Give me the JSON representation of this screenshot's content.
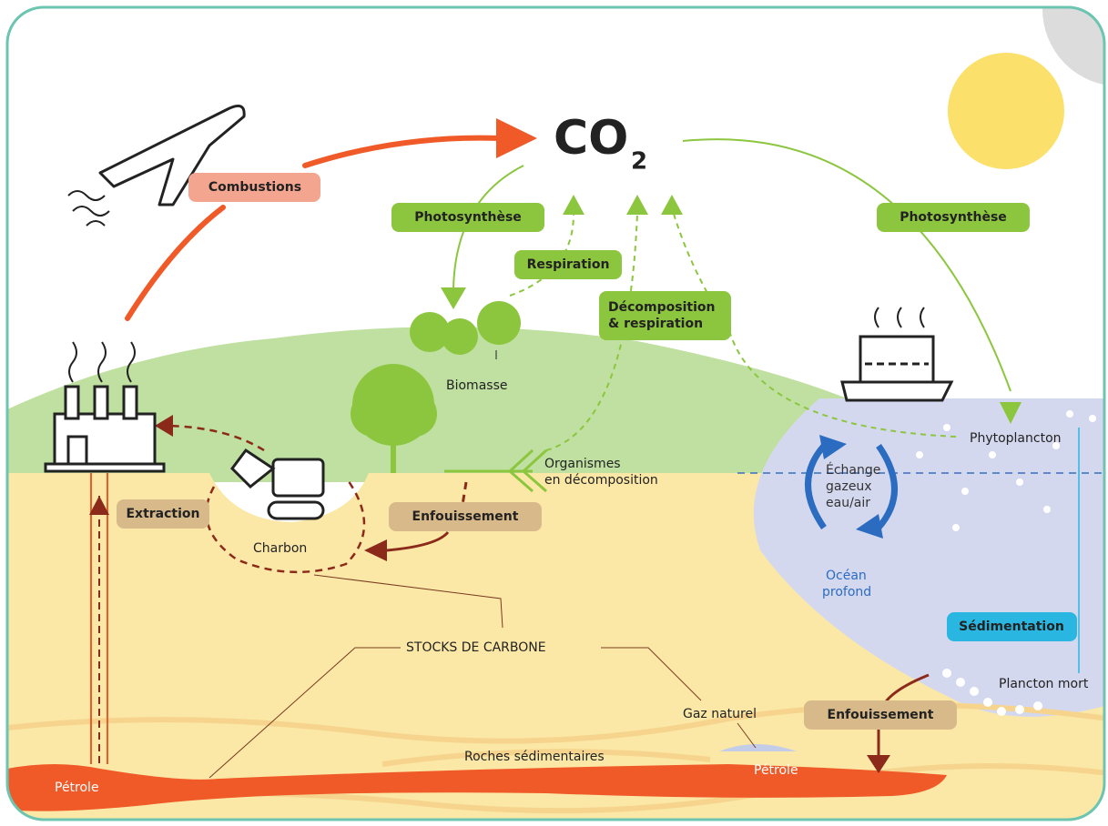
{
  "co2": {
    "main": "CO",
    "subscript": "2"
  },
  "processes": {
    "combustions": "Combustions",
    "photosynthesis_land": "Photosynthèse",
    "respiration": "Respiration",
    "decomposition": [
      "Décomposition",
      "& respiration"
    ],
    "photosynthesis_ocean": "Photosynthèse",
    "extraction": "Extraction",
    "burial_land": "Enfouissement",
    "burial_ocean": "Enfouissement",
    "sedimentation": "Sédimentation"
  },
  "places": {
    "biomass": "Biomasse",
    "organisms": [
      "Organismes",
      "en décomposition"
    ],
    "phytoplankton": "Phytoplancton",
    "gas_exchange": [
      "Échange",
      "gazeux",
      "eau/air"
    ],
    "deep_ocean": [
      "Océan",
      "profond"
    ],
    "dead_plankton": "Plancton mort",
    "coal": "Charbon",
    "natural_gas": "Gaz naturel",
    "sedimentary_rocks": "Roches sédimentaires",
    "oil_left": "Pétrole",
    "oil_right": "Pétrole"
  },
  "stocks": "STOCKS DE CARBONE"
}
